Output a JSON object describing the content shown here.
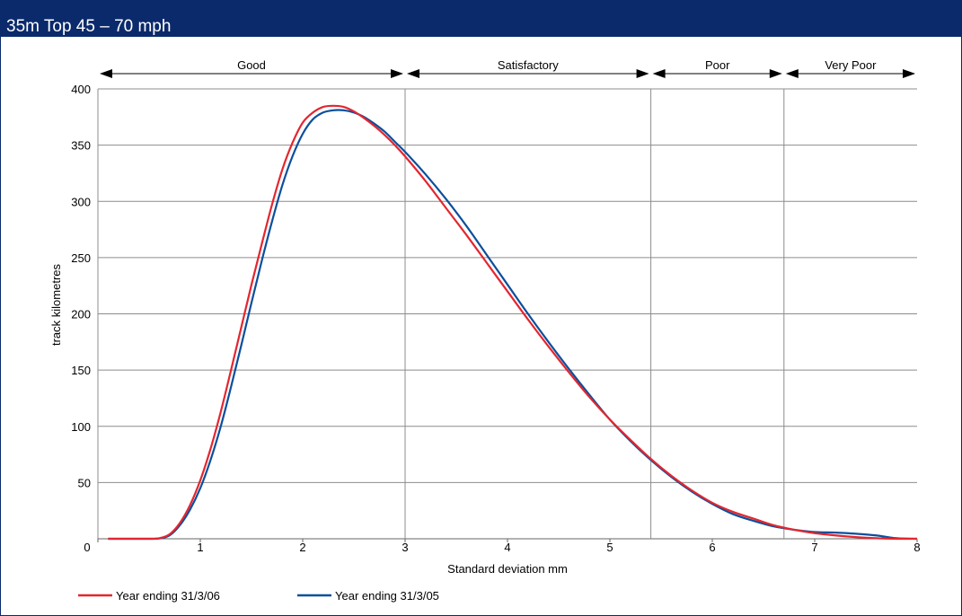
{
  "page": {
    "title": "35m Top 45 – 70 mph"
  },
  "chart_data": {
    "type": "line",
    "title": "35m Top 45 – 70 mph",
    "xlabel": "Standard deviation mm",
    "ylabel": "track kilometres",
    "xlim": [
      0,
      8
    ],
    "ylim": [
      0,
      400
    ],
    "xticks": [
      0,
      1,
      2,
      3,
      4,
      5,
      6,
      7,
      8
    ],
    "yticks": [
      50,
      100,
      150,
      200,
      250,
      300,
      350,
      400
    ],
    "grid": true,
    "legend_position": "bottom-left",
    "bands": [
      {
        "label": "Good",
        "from": 0,
        "to": 3.0
      },
      {
        "label": "Satisfactory",
        "from": 3.0,
        "to": 5.4
      },
      {
        "label": "Poor",
        "from": 5.4,
        "to": 6.7
      },
      {
        "label": "Very Poor",
        "from": 6.7,
        "to": 8
      }
    ],
    "series": [
      {
        "name": "Year ending 31/3/06",
        "color": "#e3262f",
        "points": [
          [
            0.1,
            0
          ],
          [
            0.5,
            0
          ],
          [
            0.6,
            0.5
          ],
          [
            0.7,
            4
          ],
          [
            0.8,
            14
          ],
          [
            0.9,
            30
          ],
          [
            1.0,
            52
          ],
          [
            1.1,
            80
          ],
          [
            1.2,
            113
          ],
          [
            1.3,
            150
          ],
          [
            1.4,
            188
          ],
          [
            1.5,
            226
          ],
          [
            1.6,
            262
          ],
          [
            1.7,
            297
          ],
          [
            1.8,
            328
          ],
          [
            1.9,
            352
          ],
          [
            2.0,
            370
          ],
          [
            2.1,
            379
          ],
          [
            2.2,
            384
          ],
          [
            2.3,
            385
          ],
          [
            2.4,
            384
          ],
          [
            2.5,
            380
          ],
          [
            2.6,
            374
          ],
          [
            2.7,
            367
          ],
          [
            2.8,
            359
          ],
          [
            2.9,
            350
          ],
          [
            3.0,
            340
          ],
          [
            3.2,
            318
          ],
          [
            3.4,
            294
          ],
          [
            3.6,
            270
          ],
          [
            3.8,
            245
          ],
          [
            4.0,
            220
          ],
          [
            4.2,
            195
          ],
          [
            4.4,
            171
          ],
          [
            4.6,
            148
          ],
          [
            4.8,
            126
          ],
          [
            5.0,
            106
          ],
          [
            5.2,
            88
          ],
          [
            5.4,
            71
          ],
          [
            5.6,
            56
          ],
          [
            5.8,
            43
          ],
          [
            6.0,
            32
          ],
          [
            6.2,
            24
          ],
          [
            6.4,
            18
          ],
          [
            6.6,
            12
          ],
          [
            6.8,
            8
          ],
          [
            7.0,
            5
          ],
          [
            7.2,
            3
          ],
          [
            7.4,
            1.5
          ],
          [
            7.6,
            0.5
          ],
          [
            7.8,
            0
          ],
          [
            8.0,
            0
          ]
        ]
      },
      {
        "name": "Year ending 31/3/05",
        "color": "#0b4f9c",
        "points": [
          [
            0.1,
            0
          ],
          [
            0.5,
            0
          ],
          [
            0.6,
            0.3
          ],
          [
            0.7,
            3
          ],
          [
            0.8,
            12
          ],
          [
            0.9,
            26
          ],
          [
            1.0,
            45
          ],
          [
            1.1,
            70
          ],
          [
            1.2,
            100
          ],
          [
            1.3,
            135
          ],
          [
            1.4,
            172
          ],
          [
            1.5,
            210
          ],
          [
            1.6,
            247
          ],
          [
            1.7,
            282
          ],
          [
            1.8,
            314
          ],
          [
            1.9,
            340
          ],
          [
            2.0,
            360
          ],
          [
            2.1,
            373
          ],
          [
            2.2,
            379
          ],
          [
            2.3,
            381
          ],
          [
            2.4,
            381
          ],
          [
            2.5,
            379
          ],
          [
            2.6,
            375
          ],
          [
            2.7,
            369
          ],
          [
            2.8,
            362
          ],
          [
            2.9,
            353
          ],
          [
            3.0,
            344
          ],
          [
            3.2,
            324
          ],
          [
            3.4,
            302
          ],
          [
            3.6,
            278
          ],
          [
            3.8,
            252
          ],
          [
            4.0,
            226
          ],
          [
            4.2,
            200
          ],
          [
            4.4,
            175
          ],
          [
            4.6,
            151
          ],
          [
            4.8,
            128
          ],
          [
            5.0,
            106
          ],
          [
            5.2,
            87
          ],
          [
            5.4,
            70
          ],
          [
            5.6,
            55
          ],
          [
            5.8,
            42
          ],
          [
            6.0,
            31
          ],
          [
            6.2,
            22
          ],
          [
            6.4,
            16
          ],
          [
            6.6,
            11
          ],
          [
            6.8,
            8
          ],
          [
            7.0,
            6
          ],
          [
            7.2,
            5.5
          ],
          [
            7.4,
            4.5
          ],
          [
            7.6,
            3
          ],
          [
            7.8,
            0.5
          ],
          [
            8.0,
            0
          ]
        ]
      }
    ]
  }
}
